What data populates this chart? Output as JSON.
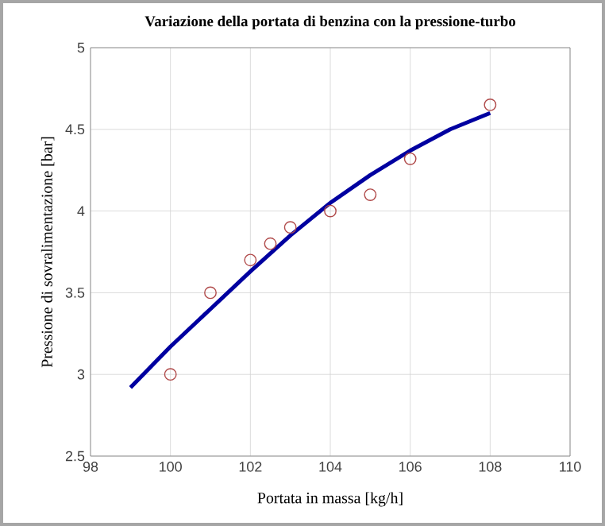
{
  "chart_data": {
    "type": "scatter",
    "title": "Variazione della portata di benzina con la pressione-turbo",
    "xlabel": "Portata in massa  [kg/h]",
    "ylabel": "Pressione di sovralimentazione  [bar]",
    "series": [
      {
        "color": "#b04a4a",
        "marker": "circle",
        "x": [
          100,
          101,
          102,
          102.5,
          103,
          104,
          105,
          106,
          108
        ],
        "values": [
          3.0,
          3.5,
          3.7,
          3.8,
          3.9,
          4.0,
          4.1,
          4.32,
          4.65
        ]
      },
      {
        "type": "line",
        "color": "#0000a0",
        "marker": "none",
        "line_style": "solid",
        "x": [
          99,
          100,
          101,
          102,
          103,
          104,
          105,
          106,
          107,
          108
        ],
        "values": [
          2.92,
          3.17,
          3.4,
          3.63,
          3.85,
          4.05,
          4.22,
          4.37,
          4.5,
          4.6
        ]
      }
    ],
    "xlim": [
      98,
      110
    ],
    "xticks": [
      98,
      100,
      102,
      104,
      106,
      108,
      110
    ],
    "ylim": [
      2.5,
      5
    ],
    "yticks": [
      2.5,
      3,
      3.5,
      4,
      4.5,
      5
    ],
    "grid": true
  }
}
